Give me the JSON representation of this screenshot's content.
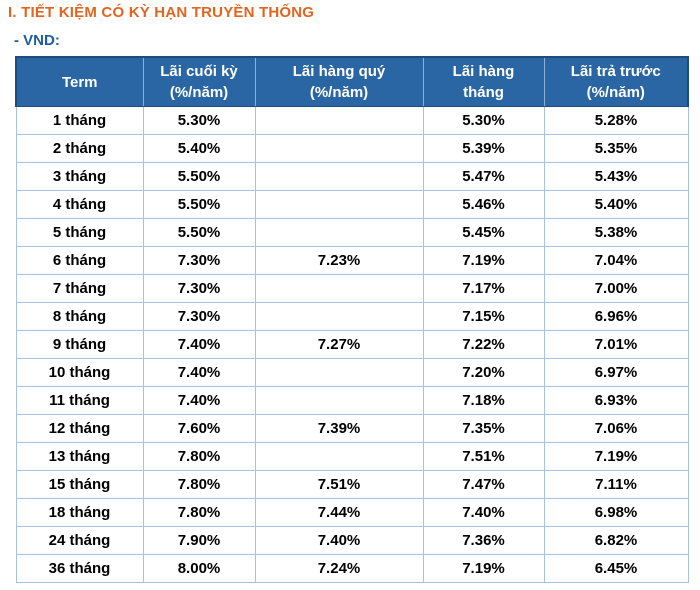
{
  "page": {
    "section_title": "I. TIẾT KIỆM CÓ KỲ HẠN TRUYỀN THỐNG",
    "currency_label": "- VND:"
  },
  "colors": {
    "title_orange": "#E2641F",
    "label_blue": "#1D5CA8",
    "header_background": "#2B66A4",
    "header_text": "#FFFFFF",
    "header_border_dark": "#1E4C7D",
    "header_border_light": "#8FB0D4",
    "cell_border": "#A6C2E1",
    "cell_text": "#000000"
  },
  "table": {
    "columns": [
      {
        "line1": "Term",
        "line2": ""
      },
      {
        "line1": "Lãi cuối kỳ",
        "line2": "(%/năm)"
      },
      {
        "line1": "Lãi hàng quý",
        "line2": "(%/năm)"
      },
      {
        "line1": "Lãi hàng",
        "line2": "tháng"
      },
      {
        "line1": "Lãi trả trước",
        "line2": "(%/năm)"
      }
    ],
    "rows": [
      [
        "1 tháng",
        "5.30%",
        "",
        "5.30%",
        "5.28%"
      ],
      [
        "2 tháng",
        "5.40%",
        "",
        "5.39%",
        "5.35%"
      ],
      [
        "3 tháng",
        "5.50%",
        "",
        "5.47%",
        "5.43%"
      ],
      [
        "4 tháng",
        "5.50%",
        "",
        "5.46%",
        "5.40%"
      ],
      [
        "5 tháng",
        "5.50%",
        "",
        "5.45%",
        "5.38%"
      ],
      [
        "6 tháng",
        "7.30%",
        "7.23%",
        "7.19%",
        "7.04%"
      ],
      [
        "7 tháng",
        "7.30%",
        "",
        "7.17%",
        "7.00%"
      ],
      [
        "8 tháng",
        "7.30%",
        "",
        "7.15%",
        "6.96%"
      ],
      [
        "9 tháng",
        "7.40%",
        "7.27%",
        "7.22%",
        "7.01%"
      ],
      [
        "10 tháng",
        "7.40%",
        "",
        "7.20%",
        "6.97%"
      ],
      [
        "11 tháng",
        "7.40%",
        "",
        "7.18%",
        "6.93%"
      ],
      [
        "12 tháng",
        "7.60%",
        "7.39%",
        "7.35%",
        "7.06%"
      ],
      [
        "13 tháng",
        "7.80%",
        "",
        "7.51%",
        "7.19%"
      ],
      [
        "15 tháng",
        "7.80%",
        "7.51%",
        "7.47%",
        "7.11%"
      ],
      [
        "18 tháng",
        "7.80%",
        "7.44%",
        "7.40%",
        "6.98%"
      ],
      [
        "24 tháng",
        "7.90%",
        "7.40%",
        "7.36%",
        "6.82%"
      ],
      [
        "36 tháng",
        "8.00%",
        "7.24%",
        "7.19%",
        "6.45%"
      ]
    ]
  }
}
